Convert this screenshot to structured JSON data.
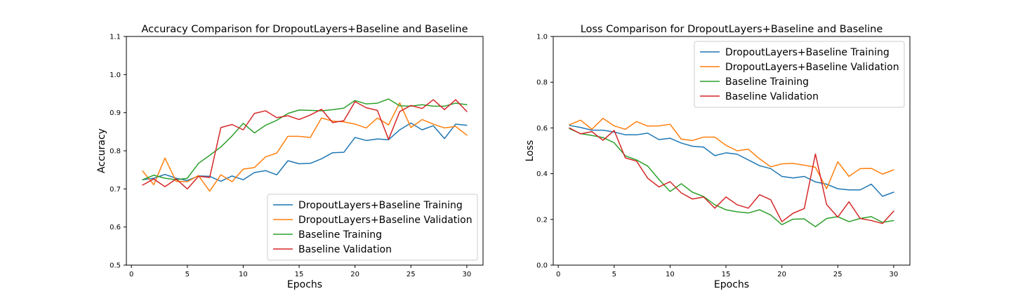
{
  "chart_data": [
    {
      "type": "line",
      "title": "Accuracy Comparison for DropoutLayers+Baseline and Baseline",
      "xlabel": "Epochs",
      "ylabel": "Accuracy",
      "xlim": [
        -0.45,
        31.45
      ],
      "ylim": [
        0.5,
        1.1
      ],
      "xticks": [
        0,
        5,
        10,
        15,
        20,
        25,
        30
      ],
      "xtick_labels": [
        "0",
        "5",
        "10",
        "15",
        "20",
        "25",
        "30"
      ],
      "yticks": [
        0.5,
        0.6,
        0.7,
        0.8,
        0.9,
        1.0,
        1.1
      ],
      "ytick_labels": [
        "0.5",
        "0.6",
        "0.7",
        "0.8",
        "0.9",
        "1.0",
        "1.1"
      ],
      "grid": false,
      "legend_position": "lower-right",
      "x": [
        1,
        2,
        3,
        4,
        5,
        6,
        7,
        8,
        9,
        10,
        11,
        12,
        13,
        14,
        15,
        16,
        17,
        18,
        19,
        20,
        21,
        22,
        23,
        24,
        25,
        26,
        27,
        28,
        29,
        30
      ],
      "series": [
        {
          "name": "DropoutLayers+Baseline Training",
          "color": "#1f77b4",
          "values": [
            0.724,
            0.728,
            0.738,
            0.728,
            0.722,
            0.734,
            0.733,
            0.72,
            0.734,
            0.724,
            0.743,
            0.748,
            0.737,
            0.774,
            0.766,
            0.767,
            0.779,
            0.795,
            0.796,
            0.835,
            0.827,
            0.831,
            0.829,
            0.855,
            0.873,
            0.855,
            0.866,
            0.832,
            0.87,
            0.867
          ]
        },
        {
          "name": "DropoutLayers+Baseline Validation",
          "color": "#ff7f0e",
          "values": [
            0.747,
            0.711,
            0.781,
            0.72,
            0.719,
            0.735,
            0.694,
            0.737,
            0.719,
            0.752,
            0.756,
            0.784,
            0.794,
            0.838,
            0.838,
            0.835,
            0.886,
            0.878,
            0.876,
            0.87,
            0.86,
            0.886,
            0.868,
            0.926,
            0.861,
            0.882,
            0.87,
            0.86,
            0.864,
            0.841
          ]
        },
        {
          "name": "Baseline Training",
          "color": "#2ca02c",
          "values": [
            0.724,
            0.736,
            0.728,
            0.724,
            0.728,
            0.767,
            0.788,
            0.81,
            0.839,
            0.872,
            0.847,
            0.867,
            0.88,
            0.898,
            0.907,
            0.906,
            0.905,
            0.908,
            0.912,
            0.932,
            0.923,
            0.925,
            0.936,
            0.918,
            0.917,
            0.921,
            0.917,
            0.917,
            0.925,
            0.921
          ]
        },
        {
          "name": "Baseline Validation",
          "color": "#d62728",
          "values": [
            0.71,
            0.726,
            0.706,
            0.726,
            0.7,
            0.733,
            0.73,
            0.861,
            0.869,
            0.855,
            0.898,
            0.905,
            0.887,
            0.892,
            0.882,
            0.894,
            0.909,
            0.874,
            0.879,
            0.929,
            0.913,
            0.906,
            0.83,
            0.903,
            0.919,
            0.911,
            0.934,
            0.908,
            0.934,
            0.903
          ]
        }
      ]
    },
    {
      "type": "line",
      "title": "Loss Comparison for DropoutLayers+Baseline and Baseline",
      "xlabel": "Epochs",
      "ylabel": "Loss",
      "xlim": [
        -0.45,
        31.45
      ],
      "ylim": [
        0.0,
        1.0
      ],
      "xticks": [
        0,
        5,
        10,
        15,
        20,
        25,
        30
      ],
      "xtick_labels": [
        "0",
        "5",
        "10",
        "15",
        "20",
        "25",
        "30"
      ],
      "yticks": [
        0.0,
        0.2,
        0.4,
        0.6,
        0.8,
        1.0
      ],
      "ytick_labels": [
        "0.0",
        "0.2",
        "0.4",
        "0.6",
        "0.8",
        "1.0"
      ],
      "grid": false,
      "legend_position": "upper-right",
      "x": [
        1,
        2,
        3,
        4,
        5,
        6,
        7,
        8,
        9,
        10,
        11,
        12,
        13,
        14,
        15,
        16,
        17,
        18,
        19,
        20,
        21,
        22,
        23,
        24,
        25,
        26,
        27,
        28,
        29,
        30
      ],
      "series": [
        {
          "name": "DropoutLayers+Baseline Training",
          "color": "#1f77b4",
          "values": [
            0.611,
            0.602,
            0.59,
            0.59,
            0.582,
            0.57,
            0.57,
            0.577,
            0.549,
            0.555,
            0.534,
            0.52,
            0.516,
            0.479,
            0.491,
            0.485,
            0.46,
            0.435,
            0.422,
            0.388,
            0.381,
            0.388,
            0.364,
            0.354,
            0.334,
            0.329,
            0.329,
            0.354,
            0.301,
            0.319
          ]
        },
        {
          "name": "DropoutLayers+Baseline Validation",
          "color": "#ff7f0e",
          "values": [
            0.614,
            0.634,
            0.594,
            0.642,
            0.609,
            0.594,
            0.628,
            0.608,
            0.609,
            0.616,
            0.551,
            0.545,
            0.56,
            0.56,
            0.524,
            0.5,
            0.507,
            0.465,
            0.43,
            0.443,
            0.445,
            0.437,
            0.428,
            0.334,
            0.452,
            0.388,
            0.422,
            0.423,
            0.398,
            0.417
          ]
        },
        {
          "name": "Baseline Training",
          "color": "#2ca02c",
          "values": [
            0.597,
            0.575,
            0.567,
            0.558,
            0.535,
            0.478,
            0.46,
            0.433,
            0.375,
            0.322,
            0.356,
            0.319,
            0.3,
            0.264,
            0.242,
            0.233,
            0.228,
            0.242,
            0.219,
            0.177,
            0.201,
            0.202,
            0.168,
            0.204,
            0.212,
            0.19,
            0.204,
            0.212,
            0.187,
            0.195
          ]
        },
        {
          "name": "Baseline Validation",
          "color": "#d62728",
          "values": [
            0.6,
            0.574,
            0.584,
            0.546,
            0.589,
            0.469,
            0.455,
            0.38,
            0.342,
            0.365,
            0.316,
            0.289,
            0.298,
            0.249,
            0.298,
            0.264,
            0.249,
            0.308,
            0.286,
            0.19,
            0.227,
            0.247,
            0.486,
            0.265,
            0.21,
            0.277,
            0.204,
            0.195,
            0.182,
            0.236
          ]
        }
      ]
    }
  ]
}
